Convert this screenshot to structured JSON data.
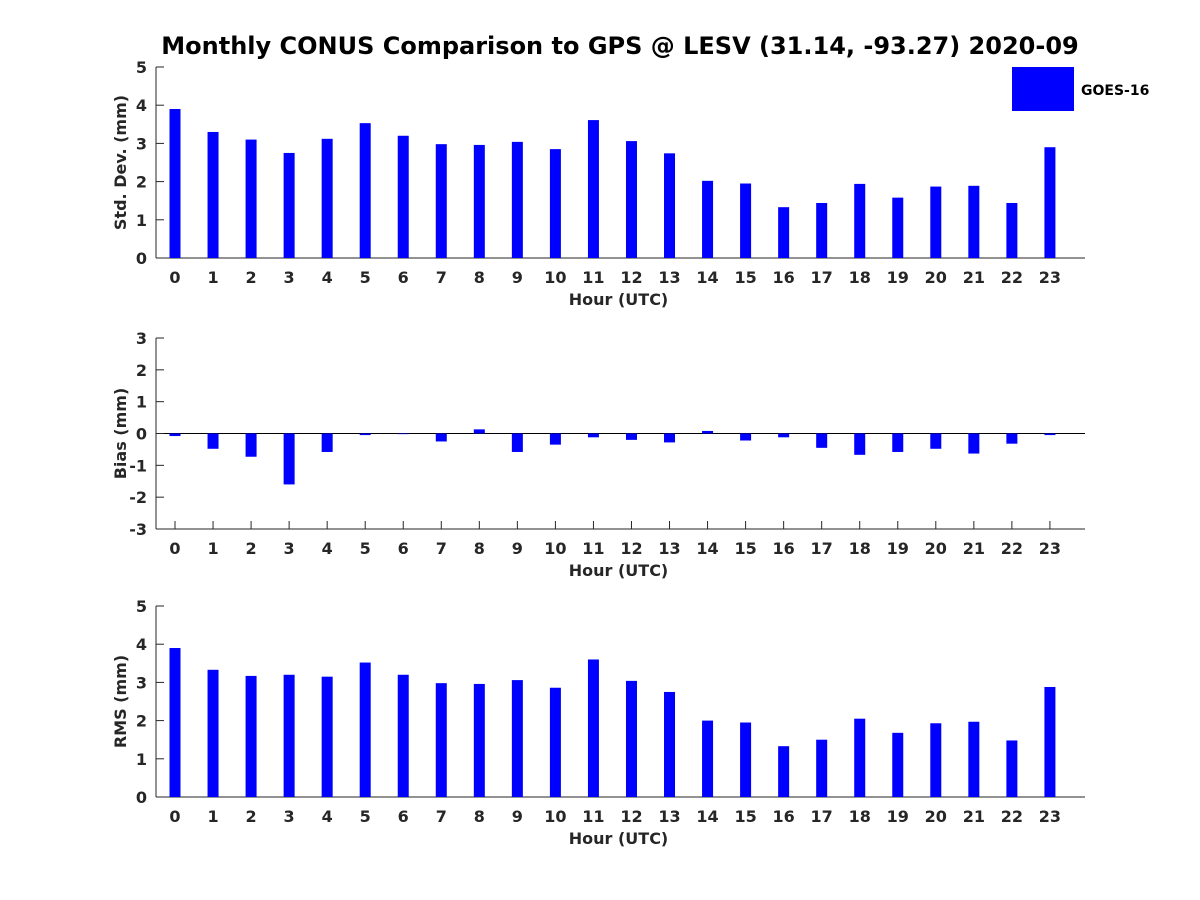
{
  "title": "Monthly CONUS Comparison to GPS @ LESV (31.14, -93.27) 2020-09",
  "colors": {
    "bar": "#0000ff",
    "axis": "#262626"
  },
  "legend": {
    "label": "GOES-16",
    "placement": "top-right"
  },
  "chart_data": [
    {
      "type": "bar",
      "name": "std_dev",
      "xlabel": "Hour (UTC)",
      "ylabel": "Std. Dev. (mm)",
      "ylim": [
        0,
        5
      ],
      "yticks": [
        0,
        1,
        2,
        3,
        4,
        5
      ],
      "categories": [
        "0",
        "1",
        "2",
        "3",
        "4",
        "5",
        "6",
        "7",
        "8",
        "9",
        "10",
        "11",
        "12",
        "13",
        "14",
        "15",
        "16",
        "17",
        "18",
        "19",
        "20",
        "21",
        "22",
        "23"
      ],
      "series": [
        {
          "name": "GOES-16",
          "values": [
            3.9,
            3.3,
            3.1,
            2.75,
            3.12,
            3.53,
            3.2,
            2.98,
            2.96,
            3.04,
            2.85,
            3.61,
            3.06,
            2.74,
            2.02,
            1.95,
            1.33,
            1.44,
            1.94,
            1.58,
            1.87,
            1.89,
            1.44,
            2.9
          ]
        }
      ]
    },
    {
      "type": "bar",
      "name": "bias",
      "xlabel": "Hour (UTC)",
      "ylabel": "Bias (mm)",
      "ylim": [
        -3,
        3
      ],
      "yticks": [
        -3,
        -2,
        -1,
        0,
        1,
        2,
        3
      ],
      "categories": [
        "0",
        "1",
        "2",
        "3",
        "4",
        "5",
        "6",
        "7",
        "8",
        "9",
        "10",
        "11",
        "12",
        "13",
        "14",
        "15",
        "16",
        "17",
        "18",
        "19",
        "20",
        "21",
        "22",
        "23"
      ],
      "series": [
        {
          "name": "GOES-16",
          "values": [
            -0.08,
            -0.48,
            -0.73,
            -1.6,
            -0.58,
            -0.05,
            -0.02,
            -0.25,
            0.13,
            -0.58,
            -0.35,
            -0.12,
            -0.2,
            -0.28,
            0.08,
            -0.22,
            -0.12,
            -0.45,
            -0.67,
            -0.58,
            -0.48,
            -0.63,
            -0.32,
            -0.05
          ]
        }
      ]
    },
    {
      "type": "bar",
      "name": "rms",
      "xlabel": "Hour (UTC)",
      "ylabel": "RMS (mm)",
      "ylim": [
        0,
        5
      ],
      "yticks": [
        0,
        1,
        2,
        3,
        4,
        5
      ],
      "categories": [
        "0",
        "1",
        "2",
        "3",
        "4",
        "5",
        "6",
        "7",
        "8",
        "9",
        "10",
        "11",
        "12",
        "13",
        "14",
        "15",
        "16",
        "17",
        "18",
        "19",
        "20",
        "21",
        "22",
        "23"
      ],
      "series": [
        {
          "name": "GOES-16",
          "values": [
            3.9,
            3.33,
            3.17,
            3.2,
            3.15,
            3.52,
            3.2,
            2.98,
            2.96,
            3.06,
            2.86,
            3.6,
            3.04,
            2.75,
            2.0,
            1.95,
            1.33,
            1.5,
            2.05,
            1.68,
            1.93,
            1.97,
            1.48,
            2.88
          ]
        }
      ]
    }
  ]
}
